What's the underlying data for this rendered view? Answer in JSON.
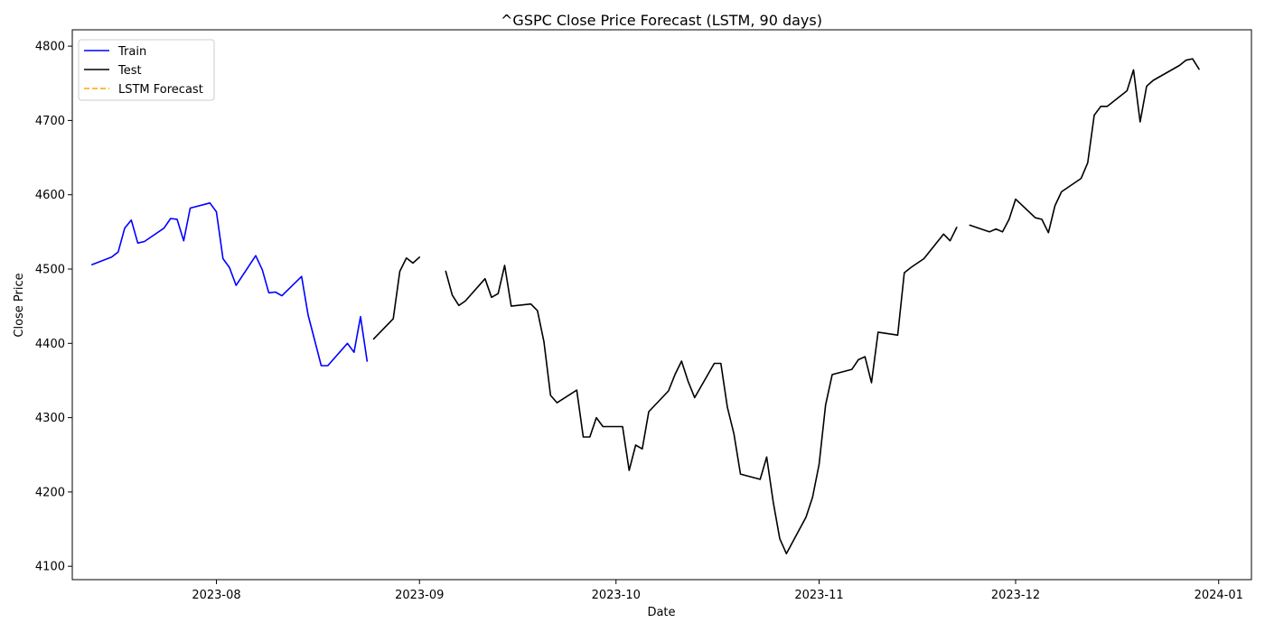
{
  "chart_data": {
    "type": "line",
    "title": "^GSPC Close Price Forecast (LSTM, 90 days)",
    "xlabel": "Date",
    "ylabel": "Close Price",
    "xlim": [
      "2023-07-10",
      "2024-01-06"
    ],
    "ylim": [
      4082,
      4822
    ],
    "x_ticks": [
      "2023-08-01",
      "2023-09-01",
      "2023-10-01",
      "2023-11-01",
      "2023-12-01",
      "2024-01-01"
    ],
    "x_tick_labels": [
      "2023-08",
      "2023-09",
      "2023-10",
      "2023-11",
      "2023-12",
      "2024-01"
    ],
    "y_ticks": [
      4100,
      4200,
      4300,
      4400,
      4500,
      4600,
      4700,
      4800
    ],
    "y_tick_labels": [
      "4100",
      "4200",
      "4300",
      "4400",
      "4500",
      "4600",
      "4700",
      "4800"
    ],
    "grid": false,
    "legend_position": "upper-left",
    "series": [
      {
        "name": "Train",
        "color": "#0000ff",
        "style": "solid",
        "segments": [
          [
            [
              "2023-07-13",
              4506
            ],
            [
              "2023-07-16",
              4516
            ],
            [
              "2023-07-17",
              4523
            ],
            [
              "2023-07-18",
              4555
            ],
            [
              "2023-07-19",
              4566
            ],
            [
              "2023-07-20",
              4535
            ],
            [
              "2023-07-21",
              4537
            ],
            [
              "2023-07-24",
              4555
            ],
            [
              "2023-07-25",
              4568
            ],
            [
              "2023-07-26",
              4567
            ],
            [
              "2023-07-27",
              4538
            ],
            [
              "2023-07-28",
              4582
            ],
            [
              "2023-07-31",
              4589
            ],
            [
              "2023-08-01",
              4577
            ],
            [
              "2023-08-02",
              4514
            ],
            [
              "2023-08-03",
              4502
            ],
            [
              "2023-08-04",
              4478
            ],
            [
              "2023-08-07",
              4518
            ],
            [
              "2023-08-08",
              4499
            ],
            [
              "2023-08-09",
              4468
            ],
            [
              "2023-08-10",
              4469
            ],
            [
              "2023-08-11",
              4464
            ],
            [
              "2023-08-14",
              4490
            ],
            [
              "2023-08-15",
              4438
            ],
            [
              "2023-08-16",
              4404
            ],
            [
              "2023-08-17",
              4370
            ],
            [
              "2023-08-18",
              4370
            ],
            [
              "2023-08-21",
              4400
            ],
            [
              "2023-08-22",
              4388
            ],
            [
              "2023-08-23",
              4436
            ],
            [
              "2023-08-24",
              4376
            ]
          ]
        ]
      },
      {
        "name": "Test",
        "color": "#000000",
        "style": "solid",
        "segments": [
          [
            [
              "2023-08-25",
              4406
            ],
            [
              "2023-08-28",
              4433
            ],
            [
              "2023-08-29",
              4497
            ],
            [
              "2023-08-30",
              4515
            ],
            [
              "2023-08-31",
              4508
            ],
            [
              "2023-09-01",
              4516
            ]
          ],
          [
            [
              "2023-09-05",
              4497
            ],
            [
              "2023-09-06",
              4465
            ],
            [
              "2023-09-07",
              4451
            ],
            [
              "2023-09-08",
              4457
            ],
            [
              "2023-09-11",
              4487
            ],
            [
              "2023-09-12",
              4462
            ],
            [
              "2023-09-13",
              4467
            ],
            [
              "2023-09-14",
              4505
            ],
            [
              "2023-09-15",
              4450
            ],
            [
              "2023-09-18",
              4453
            ],
            [
              "2023-09-19",
              4444
            ],
            [
              "2023-09-20",
              4402
            ],
            [
              "2023-09-21",
              4330
            ],
            [
              "2023-09-22",
              4320
            ],
            [
              "2023-09-25",
              4337
            ],
            [
              "2023-09-26",
              4274
            ],
            [
              "2023-09-27",
              4274
            ],
            [
              "2023-09-28",
              4300
            ],
            [
              "2023-09-29",
              4288
            ],
            [
              "2023-10-02",
              4288
            ],
            [
              "2023-10-03",
              4229
            ],
            [
              "2023-10-04",
              4263
            ],
            [
              "2023-10-05",
              4258
            ],
            [
              "2023-10-06",
              4308
            ],
            [
              "2023-10-09",
              4336
            ],
            [
              "2023-10-10",
              4358
            ],
            [
              "2023-10-11",
              4376
            ],
            [
              "2023-10-12",
              4349
            ],
            [
              "2023-10-13",
              4327
            ],
            [
              "2023-10-16",
              4373
            ],
            [
              "2023-10-17",
              4373
            ],
            [
              "2023-10-18",
              4314
            ],
            [
              "2023-10-19",
              4278
            ],
            [
              "2023-10-20",
              4224
            ],
            [
              "2023-10-23",
              4217
            ],
            [
              "2023-10-24",
              4247
            ],
            [
              "2023-10-25",
              4186
            ],
            [
              "2023-10-26",
              4137
            ],
            [
              "2023-10-27",
              4117
            ],
            [
              "2023-10-30",
              4166
            ],
            [
              "2023-10-31",
              4193
            ],
            [
              "2023-11-01",
              4237
            ],
            [
              "2023-11-02",
              4317
            ],
            [
              "2023-11-03",
              4358
            ],
            [
              "2023-11-06",
              4365
            ],
            [
              "2023-11-07",
              4378
            ],
            [
              "2023-11-08",
              4382
            ],
            [
              "2023-11-09",
              4347
            ],
            [
              "2023-11-10",
              4415
            ],
            [
              "2023-11-13",
              4411
            ],
            [
              "2023-11-14",
              4495
            ],
            [
              "2023-11-15",
              4502
            ],
            [
              "2023-11-16",
              4508
            ],
            [
              "2023-11-17",
              4514
            ],
            [
              "2023-11-20",
              4547
            ],
            [
              "2023-11-21",
              4538
            ],
            [
              "2023-11-22",
              4556
            ]
          ],
          [
            [
              "2023-11-24",
              4559
            ],
            [
              "2023-11-27",
              4550
            ],
            [
              "2023-11-28",
              4554
            ],
            [
              "2023-11-29",
              4550
            ],
            [
              "2023-11-30",
              4567
            ],
            [
              "2023-12-01",
              4594
            ],
            [
              "2023-12-04",
              4569
            ],
            [
              "2023-12-05",
              4567
            ],
            [
              "2023-12-06",
              4549
            ],
            [
              "2023-12-07",
              4585
            ],
            [
              "2023-12-08",
              4604
            ],
            [
              "2023-12-11",
              4622
            ],
            [
              "2023-12-12",
              4643
            ],
            [
              "2023-12-13",
              4707
            ],
            [
              "2023-12-14",
              4719
            ],
            [
              "2023-12-15",
              4719
            ],
            [
              "2023-12-18",
              4740
            ],
            [
              "2023-12-19",
              4768
            ],
            [
              "2023-12-20",
              4698
            ],
            [
              "2023-12-21",
              4746
            ],
            [
              "2023-12-22",
              4754
            ],
            [
              "2023-12-26",
              4774
            ],
            [
              "2023-12-27",
              4781
            ],
            [
              "2023-12-28",
              4783
            ],
            [
              "2023-12-29",
              4769
            ]
          ]
        ]
      },
      {
        "name": "LSTM Forecast",
        "color": "#ffa500",
        "style": "dashed",
        "segments": []
      }
    ]
  }
}
